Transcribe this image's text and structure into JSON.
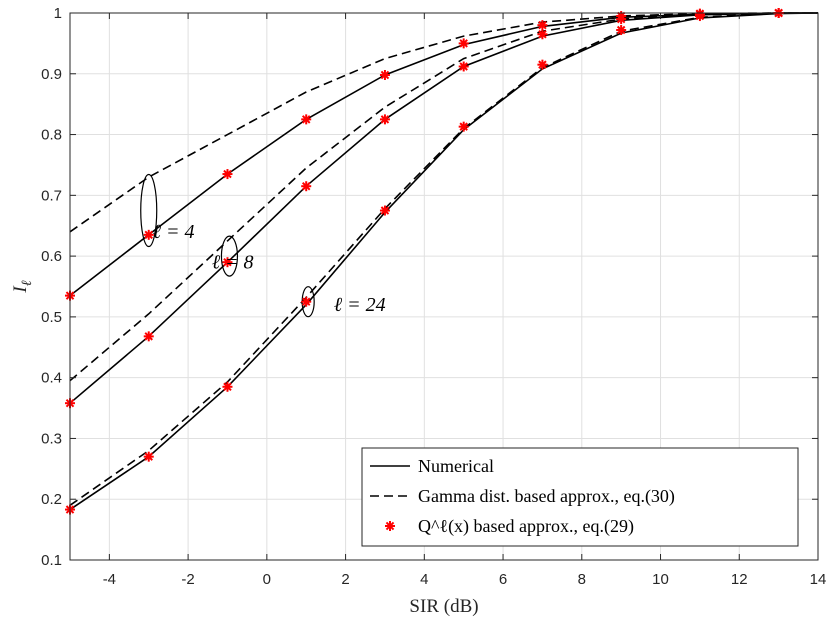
{
  "chart_data": {
    "type": "line",
    "title": "",
    "xlabel": "SIR (dB)",
    "ylabel": "I_ℓ",
    "xlim": [
      -5,
      14
    ],
    "ylim": [
      0.1,
      1.0
    ],
    "xticks": [
      -4,
      -2,
      0,
      2,
      4,
      6,
      8,
      10,
      12,
      14
    ],
    "xtick_labels": [
      "-4",
      "-2",
      "0",
      "2",
      "4",
      "6",
      "8",
      "10",
      "12",
      "14"
    ],
    "yticks": [
      0.1,
      0.2,
      0.3,
      0.4,
      0.5,
      0.6,
      0.7,
      0.8,
      0.9,
      1.0
    ],
    "ytick_labels": [
      "0.1",
      "0.2",
      "0.3",
      "0.4",
      "0.5",
      "0.6",
      "0.7",
      "0.8",
      "0.9",
      "1"
    ],
    "grid": true,
    "legend_position": "bottom-right",
    "legend": [
      {
        "label": "Numerical",
        "style": "solid"
      },
      {
        "label": "Gamma dist. based approx., eq.(30)",
        "style": "dashed"
      },
      {
        "label": "Q^ℓ(x) based approx., eq.(29)",
        "style": "marker"
      }
    ],
    "x": [
      -5,
      -3,
      -1,
      1,
      3,
      5,
      7,
      9,
      11,
      13,
      14
    ],
    "series": [
      {
        "name": "Numerical, ℓ=4",
        "style": "solid",
        "values": [
          0.535,
          0.635,
          0.735,
          0.825,
          0.898,
          0.948,
          0.978,
          0.993,
          0.998,
          1.0,
          1.0
        ]
      },
      {
        "name": "Gamma approx., ℓ=4",
        "style": "dashed",
        "values": [
          0.64,
          0.73,
          0.8,
          0.87,
          0.925,
          0.962,
          0.985,
          0.995,
          0.999,
          1.0,
          1.0
        ]
      },
      {
        "name": "Numerical, ℓ=8",
        "style": "solid",
        "values": [
          0.358,
          0.468,
          0.59,
          0.715,
          0.825,
          0.912,
          0.962,
          0.988,
          0.997,
          1.0,
          1.0
        ]
      },
      {
        "name": "Gamma approx., ℓ=8",
        "style": "dashed",
        "values": [
          0.395,
          0.505,
          0.625,
          0.745,
          0.845,
          0.925,
          0.97,
          0.99,
          0.998,
          1.0,
          1.0
        ]
      },
      {
        "name": "Numerical, ℓ=24",
        "style": "solid",
        "values": [
          0.183,
          0.27,
          0.385,
          0.52,
          0.672,
          0.808,
          0.908,
          0.967,
          0.992,
          0.999,
          1.0
        ]
      },
      {
        "name": "Gamma approx., ℓ=24",
        "style": "dashed",
        "values": [
          0.19,
          0.28,
          0.393,
          0.532,
          0.678,
          0.81,
          0.91,
          0.97,
          0.993,
          1.0,
          1.0
        ]
      }
    ],
    "markers": [
      {
        "name": "Q approx., ℓ=4",
        "x": [
          -5,
          -3,
          -1,
          1,
          3,
          5,
          7,
          9,
          11,
          13
        ],
        "values": [
          0.535,
          0.635,
          0.735,
          0.825,
          0.898,
          0.95,
          0.98,
          0.995,
          0.999,
          1.0
        ]
      },
      {
        "name": "Q approx., ℓ=8",
        "x": [
          -5,
          -3,
          -1,
          1,
          3,
          5,
          7,
          9,
          11,
          13
        ],
        "values": [
          0.358,
          0.468,
          0.59,
          0.715,
          0.825,
          0.912,
          0.965,
          0.99,
          0.998,
          1.0
        ]
      },
      {
        "name": "Q approx., ℓ=24",
        "x": [
          -5,
          -3,
          -1,
          1,
          3,
          5,
          7,
          9,
          11,
          13
        ],
        "values": [
          0.183,
          0.27,
          0.385,
          0.525,
          0.675,
          0.813,
          0.915,
          0.972,
          0.995,
          1.0
        ]
      }
    ],
    "annotations": [
      {
        "text": "ℓ = 4",
        "x": -2.9,
        "y": 0.63
      },
      {
        "text": "ℓ = 8",
        "x": -1.4,
        "y": 0.58
      },
      {
        "text": "ℓ = 24",
        "x": 1.7,
        "y": 0.51
      }
    ]
  }
}
